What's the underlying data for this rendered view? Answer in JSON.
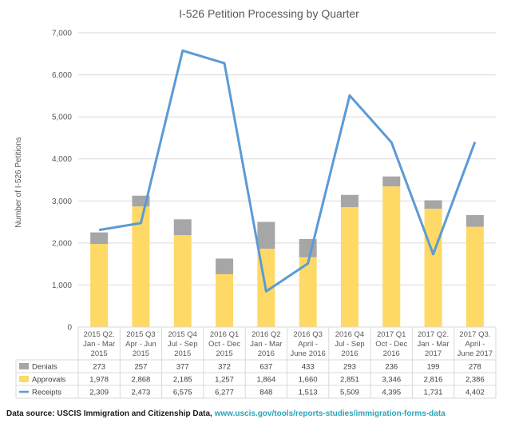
{
  "chart_data": {
    "type": "bar",
    "title": "I-526 Petition Processing by Quarter",
    "ylabel": "Number of I-526 Petitions",
    "ylim": [
      0,
      7000
    ],
    "yticks": [
      "0",
      "1,000",
      "2,000",
      "3,000",
      "4,000",
      "5,000",
      "6,000",
      "7,000"
    ],
    "grid": true,
    "categories": [
      [
        "2015 Q2.",
        "Jan - Mar",
        "2015"
      ],
      [
        "2015 Q3",
        "Apr - Jun",
        "2015"
      ],
      [
        "2015 Q4",
        "Jul - Sep",
        "2015"
      ],
      [
        "2016 Q1",
        "Oct - Dec",
        "2015"
      ],
      [
        "2016 Q2",
        "Jan - Mar",
        "2016"
      ],
      [
        "2016 Q3",
        "April -",
        "June 2016"
      ],
      [
        "2016 Q4",
        "Jul - Sep",
        "2016"
      ],
      [
        "2017 Q1",
        "Oct - Dec",
        "2016"
      ],
      [
        "2017 Q2.",
        "Jan - Mar",
        "2017"
      ],
      [
        "2017 Q3.",
        "April -",
        "June 2017"
      ]
    ],
    "series": [
      {
        "name": "Denials",
        "type": "stacked-bar",
        "color": "#a6a6a6",
        "values": [
          273,
          257,
          377,
          372,
          637,
          433,
          293,
          236,
          199,
          278
        ],
        "labels": [
          "273",
          "257",
          "377",
          "372",
          "637",
          "433",
          "293",
          "236",
          "199",
          "278"
        ]
      },
      {
        "name": "Approvals",
        "type": "stacked-bar",
        "color": "#ffd966",
        "values": [
          1978,
          2868,
          2185,
          1257,
          1864,
          1660,
          2851,
          3346,
          2816,
          2386
        ],
        "labels": [
          "1,978",
          "2,868",
          "2,185",
          "1,257",
          "1,864",
          "1,660",
          "2,851",
          "3,346",
          "2,816",
          "2,386"
        ]
      },
      {
        "name": "Receipts",
        "type": "line",
        "color": "#5b9bd5",
        "values": [
          2309,
          2473,
          6575,
          6277,
          848,
          1513,
          5509,
          4395,
          1731,
          4402
        ],
        "labels": [
          "2,309",
          "2,473",
          "6,575",
          "6,277",
          "848",
          "1,513",
          "5,509",
          "4,395",
          "1,731",
          "4,402"
        ]
      }
    ],
    "legend": "data table below chart"
  },
  "source": {
    "label": "Data source: USCIS Immigration and Citizenship Data,",
    "url": "www.uscis.gov/tools/reports-studies/immigration-forms-data"
  },
  "colors": {
    "grid": "#d9d9d9",
    "text": "#595959"
  }
}
